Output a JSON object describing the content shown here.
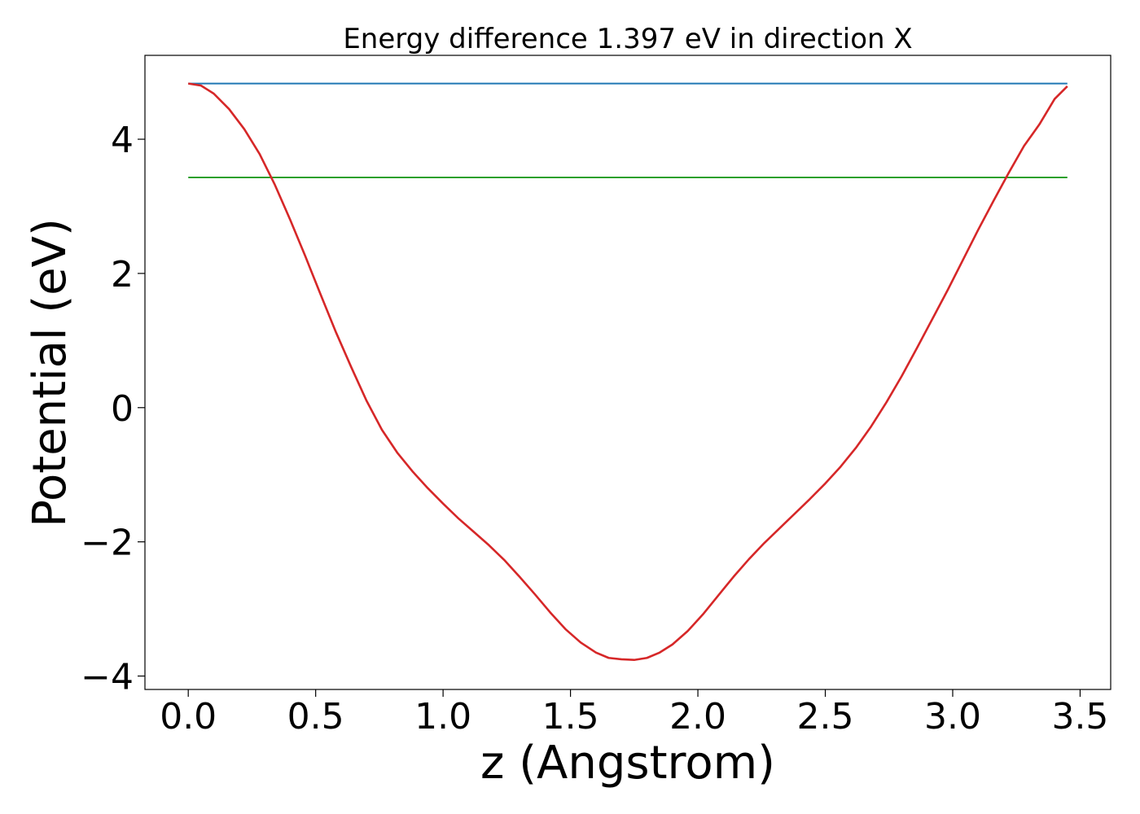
{
  "chart_data": {
    "type": "line",
    "title": "Energy difference 1.397 eV in direction X",
    "xlabel": "z (Angstrom)",
    "ylabel": "Potential (eV)",
    "xlim": [
      -0.17,
      3.62
    ],
    "ylim": [
      -4.2,
      5.25
    ],
    "xticks": [
      0.0,
      0.5,
      1.0,
      1.5,
      2.0,
      2.5,
      3.0,
      3.5
    ],
    "xtick_labels": [
      "0.0",
      "0.5",
      "1.0",
      "1.5",
      "2.0",
      "2.5",
      "3.0",
      "3.5"
    ],
    "yticks": [
      -4,
      -2,
      0,
      2,
      4
    ],
    "ytick_labels": [
      "−4",
      "−2",
      "0",
      "2",
      "4"
    ],
    "grid": false,
    "series": [
      {
        "color": "#1f77b4",
        "x": [
          0.0,
          3.45
        ],
        "y": [
          4.83,
          4.83
        ]
      },
      {
        "color": "#2ca02c",
        "x": [
          0.0,
          3.45
        ],
        "y": [
          3.43,
          3.43
        ]
      },
      {
        "color": "#d62728",
        "x": [
          0.0,
          0.05,
          0.1,
          0.16,
          0.22,
          0.28,
          0.34,
          0.4,
          0.46,
          0.52,
          0.58,
          0.64,
          0.7,
          0.76,
          0.82,
          0.88,
          0.94,
          1.0,
          1.06,
          1.12,
          1.18,
          1.24,
          1.3,
          1.36,
          1.42,
          1.48,
          1.54,
          1.6,
          1.65,
          1.7,
          1.75,
          1.8,
          1.85,
          1.9,
          1.96,
          2.02,
          2.08,
          2.14,
          2.2,
          2.26,
          2.32,
          2.38,
          2.44,
          2.5,
          2.56,
          2.62,
          2.68,
          2.74,
          2.8,
          2.86,
          2.92,
          2.98,
          3.04,
          3.1,
          3.16,
          3.22,
          3.28,
          3.34,
          3.4,
          3.45
        ],
        "y": [
          4.83,
          4.8,
          4.68,
          4.45,
          4.15,
          3.78,
          3.32,
          2.8,
          2.25,
          1.68,
          1.12,
          0.6,
          0.1,
          -0.33,
          -0.67,
          -0.95,
          -1.2,
          -1.43,
          -1.65,
          -1.85,
          -2.05,
          -2.27,
          -2.52,
          -2.78,
          -3.05,
          -3.3,
          -3.5,
          -3.65,
          -3.73,
          -3.75,
          -3.76,
          -3.73,
          -3.65,
          -3.53,
          -3.33,
          -3.08,
          -2.8,
          -2.52,
          -2.26,
          -2.02,
          -1.8,
          -1.58,
          -1.36,
          -1.13,
          -0.88,
          -0.6,
          -0.28,
          0.08,
          0.47,
          0.89,
          1.32,
          1.75,
          2.2,
          2.65,
          3.08,
          3.5,
          3.9,
          4.22,
          4.6,
          4.79
        ]
      }
    ]
  }
}
